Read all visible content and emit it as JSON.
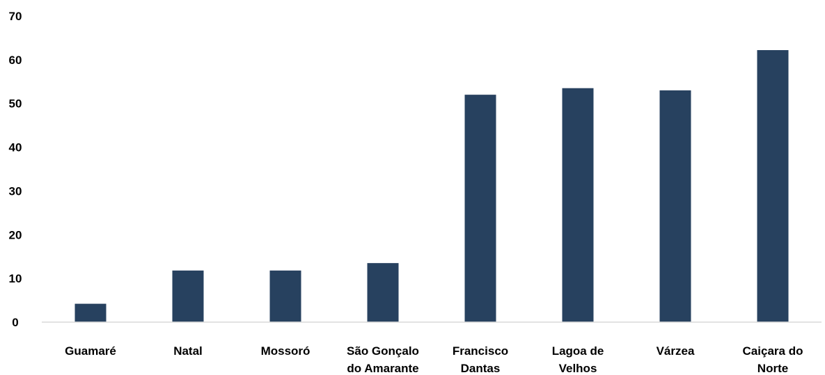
{
  "chart_data": {
    "type": "bar",
    "title": "",
    "xlabel": "",
    "ylabel": "",
    "ylim": [
      0,
      70
    ],
    "yticks": [
      "0",
      "10",
      "20",
      "30",
      "40",
      "50",
      "60",
      "70"
    ],
    "grid": false,
    "legend": "none",
    "bar_color": "#27415f",
    "categories": [
      [
        "Guamaré"
      ],
      [
        "Natal"
      ],
      [
        "Mossoró"
      ],
      [
        "São Gonçalo",
        "do Amarante"
      ],
      [
        "Francisco",
        "Dantas"
      ],
      [
        "Lagoa de",
        "Velhos"
      ],
      [
        "Várzea"
      ],
      [
        "Caiçara do",
        "Norte"
      ]
    ],
    "values": [
      4.2,
      11.8,
      11.8,
      13.5,
      52.0,
      53.5,
      53.0,
      62.2
    ]
  }
}
